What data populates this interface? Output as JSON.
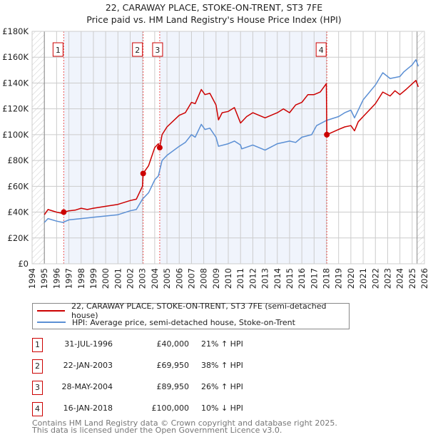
{
  "chart_data": {
    "type": "line",
    "title": "22, CARAWAY PLACE, STOKE-ON-TRENT, ST3 7FE",
    "subtitle": "Price paid vs. HM Land Registry's House Price Index (HPI)",
    "xlim": [
      1994,
      2026
    ],
    "ylim": [
      0,
      180000
    ],
    "x_ticks": [
      "1994",
      "1995",
      "1996",
      "1997",
      "1998",
      "1999",
      "2000",
      "2001",
      "2002",
      "2003",
      "2004",
      "2005",
      "2006",
      "2007",
      "2008",
      "2009",
      "2010",
      "2011",
      "2012",
      "2013",
      "2014",
      "2015",
      "2016",
      "2017",
      "2018",
      "2019",
      "2020",
      "2021",
      "2022",
      "2023",
      "2024",
      "2025",
      "2026"
    ],
    "y_ticks": [
      {
        "v": 0,
        "label": "£0"
      },
      {
        "v": 20000,
        "label": "£20K"
      },
      {
        "v": 40000,
        "label": "£40K"
      },
      {
        "v": 60000,
        "label": "£60K"
      },
      {
        "v": 80000,
        "label": "£80K"
      },
      {
        "v": 100000,
        "label": "£100K"
      },
      {
        "v": 120000,
        "label": "£120K"
      },
      {
        "v": 140000,
        "label": "£140K"
      },
      {
        "v": 160000,
        "label": "£160K"
      },
      {
        "v": 180000,
        "label": "£180K"
      }
    ],
    "grid": true,
    "data_range": [
      1995,
      2025.4
    ],
    "series": [
      {
        "name": "22, CARAWAY PLACE, STOKE-ON-TRENT, ST3 7FE (semi-detached house)",
        "color": "#cc0000",
        "x": [
          1995,
          1995.3,
          1996,
          1996.5,
          1996.58,
          1997,
          1997.5,
          1998,
          1998.5,
          1999,
          2000,
          2001,
          2002,
          2002.5,
          2003,
          2003.06,
          2003.5,
          2004,
          2004.3,
          2004.41,
          2004.6,
          2005,
          2006,
          2006.5,
          2007,
          2007.3,
          2007.8,
          2008.1,
          2008.5,
          2009,
          2009.2,
          2009.5,
          2010,
          2010.5,
          2011,
          2011.5,
          2012,
          2013,
          2014,
          2014.5,
          2015,
          2015.5,
          2016,
          2016.5,
          2017,
          2017.5,
          2018.0,
          2018.04,
          2019,
          2019.5,
          2020,
          2020.3,
          2020.6,
          2021,
          2022,
          2022.6,
          2023.2,
          2023.6,
          2024,
          2024.5,
          2025.3,
          2025.5
        ],
        "y": [
          38000,
          42000,
          40000,
          39000,
          40000,
          41000,
          41500,
          43000,
          42000,
          43000,
          44500,
          46000,
          49000,
          50000,
          60000,
          70000,
          76000,
          90000,
          93000,
          90000,
          100000,
          106000,
          115000,
          117000,
          125000,
          124000,
          135000,
          131000,
          132000,
          123000,
          111500,
          117000,
          118000,
          121000,
          109000,
          114000,
          117000,
          113000,
          117000,
          120000,
          117000,
          123000,
          125000,
          131000,
          131000,
          133000,
          139500,
          100000,
          104000,
          106000,
          107000,
          103000,
          110000,
          114000,
          124000,
          133000,
          130000,
          134000,
          131000,
          135000,
          142000,
          137000
        ]
      },
      {
        "name": "HPI: Average price, semi-detached house, Stoke-on-Trent",
        "color": "#5b8fd4",
        "x": [
          1995,
          1995.3,
          1996,
          1996.5,
          1997,
          1998,
          1999,
          2000,
          2001,
          2002,
          2002.5,
          2003,
          2003.5,
          2004,
          2004.3,
          2004.6,
          2005,
          2006,
          2006.5,
          2007,
          2007.3,
          2007.8,
          2008.1,
          2008.5,
          2009,
          2009.2,
          2010,
          2010.5,
          2011,
          2011.1,
          2012,
          2013,
          2014,
          2015,
          2015.5,
          2016,
          2016.8,
          2017.2,
          2018,
          2019,
          2019.5,
          2020,
          2020.3,
          2021,
          2022,
          2022.6,
          2023.2,
          2024,
          2024.3,
          2025,
          2025.3,
          2025.5
        ],
        "y": [
          32000,
          35000,
          33000,
          32000,
          34000,
          35000,
          36000,
          37000,
          38000,
          41000,
          42000,
          50000,
          55000,
          65000,
          68000,
          80000,
          84000,
          91000,
          94000,
          100000,
          98000,
          108000,
          104000,
          105000,
          98000,
          91000,
          93000,
          95000,
          92000,
          89000,
          92000,
          88000,
          93000,
          95000,
          94000,
          98000,
          100000,
          107000,
          111000,
          114000,
          117000,
          119000,
          113000,
          127000,
          138500,
          148000,
          143500,
          145000,
          148500,
          154000,
          158000,
          153000
        ]
      }
    ],
    "sales": [
      {
        "n": "1",
        "x": 1996.58,
        "y": 40000
      },
      {
        "n": "2",
        "x": 2003.06,
        "y": 69950
      },
      {
        "n": "3",
        "x": 2004.41,
        "y": 89950
      },
      {
        "n": "4",
        "x": 2018.04,
        "y": 100000
      }
    ]
  },
  "legend": {
    "property": "22, CARAWAY PLACE, STOKE-ON-TRENT, ST3 7FE (semi-detached house)",
    "hpi": "HPI: Average price, semi-detached house, Stoke-on-Trent"
  },
  "transactions": [
    {
      "n": "1",
      "date": "31-JUL-1996",
      "price": "£40,000",
      "hpi": "21% ↑ HPI"
    },
    {
      "n": "2",
      "date": "22-JAN-2003",
      "price": "£69,950",
      "hpi": "38% ↑ HPI"
    },
    {
      "n": "3",
      "date": "28-MAY-2004",
      "price": "£89,950",
      "hpi": "26% ↑ HPI"
    },
    {
      "n": "4",
      "date": "16-JAN-2018",
      "price": "£100,000",
      "hpi": "10% ↓ HPI"
    }
  ],
  "footer": {
    "line1": "Contains HM Land Registry data © Crown copyright and database right 2025.",
    "line2": "This data is licensed under the Open Government Licence v3.0."
  }
}
